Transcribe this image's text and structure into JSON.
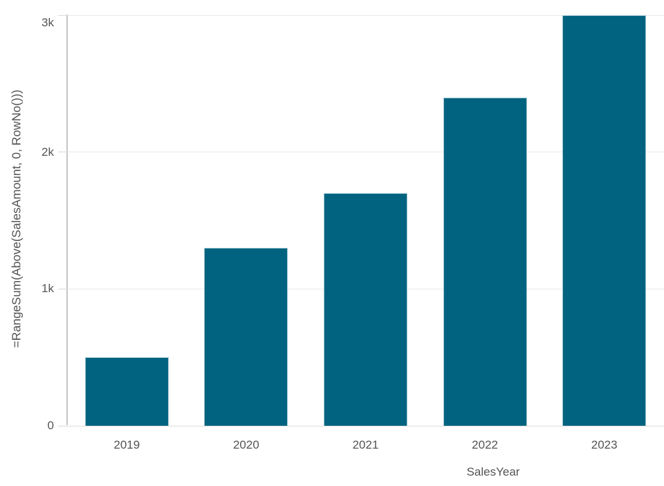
{
  "chart_data": {
    "type": "bar",
    "title": "",
    "xlabel": "SalesYear",
    "ylabel": "=RangeSum(Above(SalesAmount, 0, RowNo()))",
    "categories": [
      "2019",
      "2020",
      "2021",
      "2022",
      "2023"
    ],
    "values": [
      500,
      1300,
      1700,
      2400,
      3000
    ],
    "ylim": [
      0,
      3000
    ],
    "y_ticks": [
      {
        "value": 0,
        "label": "0"
      },
      {
        "value": 1000,
        "label": "1k"
      },
      {
        "value": 2000,
        "label": "2k"
      },
      {
        "value": 3000,
        "label": "3k"
      }
    ],
    "grid": true,
    "legend_position": "none"
  },
  "colors": {
    "bar_fill": "#01637f",
    "bar_border": "#9fc6d4",
    "gridline": "#e8e8e8",
    "baseline": "#dcdcdc",
    "axis_line": "#c5c5c5",
    "tick_mark": "#d8d8d8",
    "label_text": "#545454",
    "background": "#ffffff"
  }
}
